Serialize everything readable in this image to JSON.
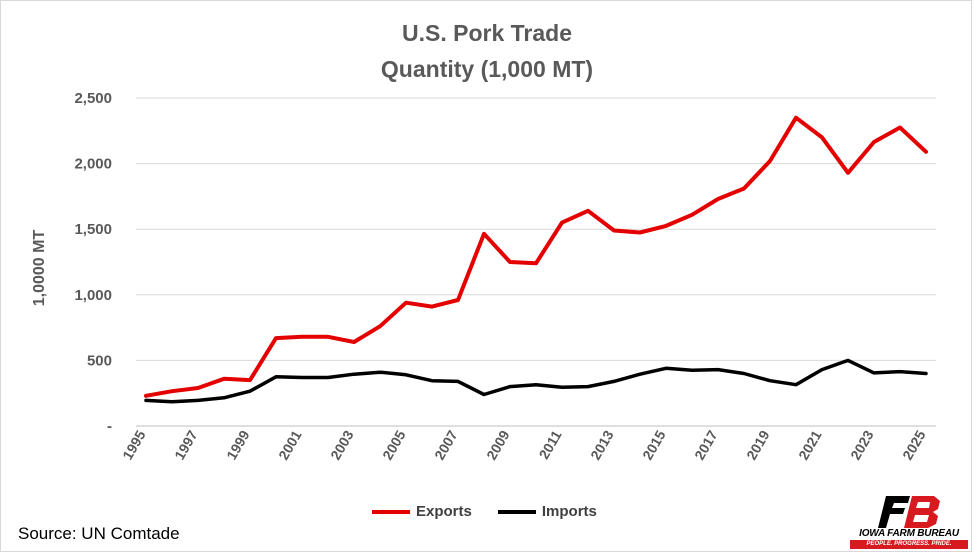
{
  "chart_data": {
    "type": "line",
    "title": "U.S. Pork Trade",
    "subtitle": "Quantity (1,000 MT)",
    "xlabel": "",
    "ylabel": "1,0000 MT",
    "x": [
      1995,
      1996,
      1997,
      1998,
      1999,
      2000,
      2001,
      2002,
      2003,
      2004,
      2005,
      2006,
      2007,
      2008,
      2009,
      2010,
      2011,
      2012,
      2013,
      2014,
      2015,
      2016,
      2017,
      2018,
      2019,
      2020,
      2021,
      2022,
      2023,
      2024,
      2025
    ],
    "x_tick_labels": [
      "1995",
      "1997",
      "1999",
      "2001",
      "2003",
      "2005",
      "2007",
      "2009",
      "2011",
      "2013",
      "2015",
      "2017",
      "2019",
      "2021",
      "2023",
      "2025"
    ],
    "ylim": [
      0,
      2500
    ],
    "y_ticks": [
      0,
      500,
      1000,
      1500,
      2000,
      2500
    ],
    "y_tick_labels": [
      "-",
      "500",
      "1,000",
      "1,500",
      "2,000",
      "2,500"
    ],
    "grid": true,
    "legend_position": "bottom",
    "series": [
      {
        "name": "Exports",
        "color": "#e50000",
        "values": [
          230,
          265,
          290,
          360,
          350,
          670,
          680,
          680,
          640,
          760,
          940,
          910,
          960,
          1465,
          1250,
          1240,
          1550,
          1640,
          1490,
          1475,
          1525,
          1610,
          1730,
          1810,
          2020,
          2350,
          2200,
          1930,
          2165,
          2275,
          2090
        ]
      },
      {
        "name": "Imports",
        "color": "#000000",
        "values": [
          195,
          185,
          195,
          215,
          265,
          375,
          370,
          370,
          395,
          410,
          390,
          345,
          340,
          240,
          300,
          315,
          295,
          300,
          340,
          395,
          440,
          425,
          430,
          400,
          345,
          315,
          430,
          500,
          405,
          415,
          400
        ]
      }
    ]
  },
  "source_text": "Source: UN Comtade",
  "logo": {
    "name": "IOWA FARM BUREAU",
    "tagline": "PEOPLE. PROGRESS. PRIDE."
  }
}
